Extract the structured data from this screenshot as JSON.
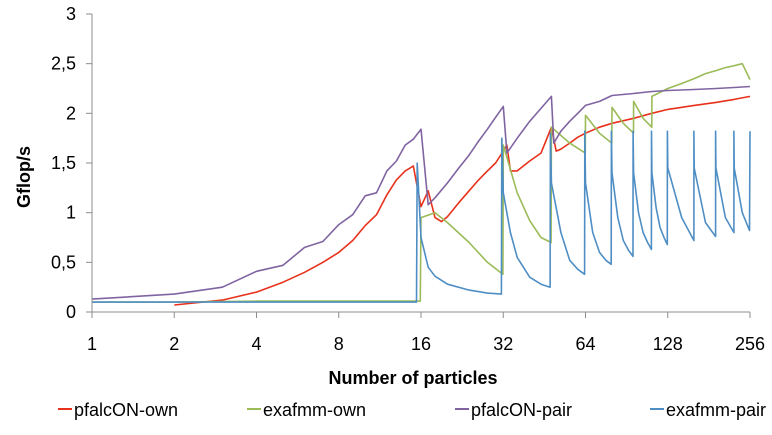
{
  "chart_data": {
    "type": "line",
    "xlabel": "Number of particles",
    "ylabel": "Gflop/s",
    "x_scale": "log2",
    "xlim": [
      1,
      256
    ],
    "ylim": [
      0,
      3
    ],
    "x_ticks": [
      "1",
      "2",
      "4",
      "8",
      "16",
      "32",
      "64",
      "128",
      "256"
    ],
    "y_ticks": [
      "0",
      "0,5",
      "1",
      "1,5",
      "2",
      "2,5",
      "3"
    ],
    "grid": false,
    "legend_position": "bottom",
    "series": [
      {
        "name": "pfalcON-own",
        "color": "#e8311a",
        "x": [
          2,
          3,
          4,
          5,
          6,
          7,
          8,
          9,
          10,
          11,
          12,
          13,
          14,
          15,
          16,
          17,
          18,
          19,
          20,
          22,
          24,
          26,
          28,
          30,
          32,
          33,
          34,
          36,
          40,
          44,
          48,
          50,
          52,
          56,
          60,
          64,
          72,
          80,
          96,
          112,
          128,
          160,
          192,
          224,
          256
        ],
        "y": [
          0.07,
          0.12,
          0.2,
          0.3,
          0.4,
          0.5,
          0.6,
          0.72,
          0.87,
          0.98,
          1.18,
          1.33,
          1.42,
          1.47,
          1.06,
          1.22,
          0.95,
          0.91,
          0.96,
          1.1,
          1.22,
          1.33,
          1.42,
          1.5,
          1.62,
          1.68,
          1.42,
          1.42,
          1.52,
          1.6,
          1.86,
          1.62,
          1.64,
          1.7,
          1.76,
          1.8,
          1.86,
          1.9,
          1.95,
          2.0,
          2.04,
          2.08,
          2.11,
          2.14,
          2.17
        ]
      },
      {
        "name": "exafmm-own",
        "color": "#9bbb59",
        "x": [
          1,
          2,
          4,
          8,
          12,
          15.9,
          16,
          18,
          20,
          24,
          28,
          31.9,
          32,
          36,
          40,
          44,
          47.9,
          48,
          56,
          63.9,
          64,
          72,
          79.9,
          80,
          88,
          95.9,
          96,
          104,
          111.9,
          112,
          128,
          144,
          160,
          176,
          192,
          208,
          224,
          240,
          256
        ],
        "y": [
          0.1,
          0.1,
          0.11,
          0.11,
          0.11,
          0.11,
          0.95,
          1.0,
          0.9,
          0.7,
          0.5,
          0.38,
          1.68,
          1.2,
          0.92,
          0.75,
          0.7,
          1.86,
          1.7,
          1.6,
          1.98,
          1.8,
          1.7,
          2.06,
          1.9,
          1.8,
          2.12,
          1.95,
          1.86,
          2.17,
          2.25,
          2.3,
          2.35,
          2.4,
          2.43,
          2.46,
          2.48,
          2.5,
          2.34
        ]
      },
      {
        "name": "pfalcON-pair",
        "color": "#8064a2",
        "x": [
          1,
          2,
          3,
          4,
          5,
          6,
          7,
          8,
          9,
          10,
          11,
          12,
          13,
          14,
          15,
          16,
          17,
          18,
          20,
          22,
          24,
          26,
          28,
          30,
          32,
          33,
          36,
          40,
          44,
          48,
          49,
          52,
          56,
          60,
          64,
          72,
          80,
          96,
          112,
          128,
          160,
          192,
          224,
          256
        ],
        "y": [
          0.13,
          0.18,
          0.25,
          0.41,
          0.47,
          0.65,
          0.71,
          0.88,
          0.98,
          1.17,
          1.2,
          1.42,
          1.52,
          1.68,
          1.74,
          1.84,
          1.08,
          1.15,
          1.3,
          1.45,
          1.58,
          1.72,
          1.84,
          1.96,
          2.07,
          1.6,
          1.75,
          1.92,
          2.05,
          2.17,
          1.7,
          1.82,
          1.92,
          2.0,
          2.08,
          2.12,
          2.18,
          2.2,
          2.22,
          2.23,
          2.24,
          2.25,
          2.26,
          2.27
        ]
      },
      {
        "name": "exafmm-pair",
        "color": "#4f8ec4",
        "x": [
          1,
          2,
          4,
          8,
          12,
          15.4,
          15.5,
          16,
          17,
          18,
          20,
          24,
          28,
          31.5,
          31.6,
          32,
          34,
          36,
          40,
          44,
          47.5,
          47.6,
          48,
          52,
          56,
          60,
          63.5,
          63.6,
          64,
          68,
          72,
          76,
          79.5,
          79.6,
          80,
          84,
          88,
          92,
          95.5,
          95.6,
          96,
          100,
          104,
          108,
          111.5,
          111.6,
          112,
          116,
          120,
          124,
          127.5,
          127.6,
          128,
          144,
          159.5,
          159.6,
          160,
          176,
          191.5,
          191.6,
          192,
          208,
          223.5,
          223.6,
          224,
          240,
          255,
          256
        ],
        "y": [
          0.1,
          0.1,
          0.1,
          0.1,
          0.1,
          0.1,
          1.5,
          0.75,
          0.45,
          0.36,
          0.28,
          0.22,
          0.19,
          0.18,
          1.75,
          1.2,
          0.8,
          0.55,
          0.35,
          0.28,
          0.25,
          1.8,
          1.3,
          0.8,
          0.52,
          0.43,
          0.38,
          1.82,
          1.3,
          0.8,
          0.6,
          0.52,
          0.48,
          1.82,
          1.4,
          0.95,
          0.72,
          0.62,
          0.56,
          1.82,
          1.4,
          1.0,
          0.8,
          0.7,
          0.63,
          1.82,
          1.4,
          1.05,
          0.85,
          0.75,
          0.68,
          1.82,
          1.45,
          0.95,
          0.72,
          1.82,
          1.45,
          0.9,
          0.76,
          1.82,
          1.45,
          0.95,
          0.8,
          1.82,
          1.45,
          1.0,
          0.82,
          1.82
        ]
      }
    ]
  }
}
